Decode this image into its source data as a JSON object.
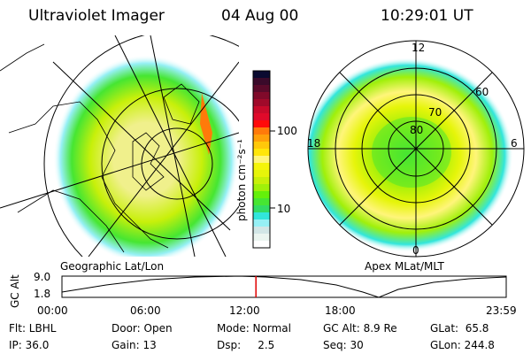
{
  "header": {
    "instrument": "Ultraviolet Imager",
    "date": "04 Aug 00",
    "time": "10:29:01 UT"
  },
  "colorbar": {
    "label": "photon cm⁻²s⁻¹",
    "ticks": [
      "100",
      "10"
    ],
    "colors": [
      "#0a0a30",
      "#3a0a2a",
      "#5a0a2a",
      "#800a2a",
      "#a00a2a",
      "#c80a2a",
      "#e00a2a",
      "#ff0a0a",
      "#ff7a0a",
      "#ffa00a",
      "#ffc80a",
      "#ffe60a",
      "#fff57a",
      "#f5f50a",
      "#e6f50a",
      "#c8f00a",
      "#a0f00a",
      "#64f00a",
      "#46e632",
      "#32dc64",
      "#32e6dc",
      "#96f0f5",
      "#d2e6e6",
      "#ebf5f0",
      "#ffffff"
    ]
  },
  "map_left": {
    "label": "Geographic Lat/Lon"
  },
  "map_right": {
    "label": "Apex MLat/MLT",
    "mlt_labels": [
      "12",
      "18",
      "6",
      "0"
    ],
    "lat_labels": [
      "80",
      "70",
      "60"
    ]
  },
  "altitude_plot": {
    "ylabel": "GC Alt",
    "yticks": [
      "9.0",
      "1.8"
    ],
    "xticks": [
      "00:00",
      "06:00",
      "12:00",
      "18:00",
      "23:59"
    ],
    "current_time_hours": 10.48,
    "marker_color": "#e00000"
  },
  "info": {
    "row1": [
      "Flt: LBHL",
      "Door: Open",
      "Mode: Normal",
      "GC Alt: 8.9 Re",
      "GLat:  65.8"
    ],
    "row2": [
      "IP: 36.0",
      "Gain: 13",
      "Dsp:     2.5",
      "Seq: 30",
      "GLon: 244.8"
    ]
  }
}
